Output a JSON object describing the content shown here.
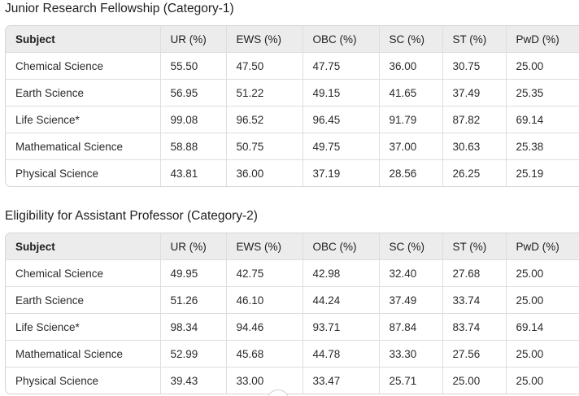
{
  "sections": [
    {
      "title": "Junior Research Fellowship (Category-1)",
      "headers": [
        "Subject",
        "UR (%)",
        "EWS (%)",
        "OBC (%)",
        "SC (%)",
        "ST (%)",
        "PwD (%)"
      ],
      "rows": [
        [
          "Chemical Science",
          "55.50",
          "47.50",
          "47.75",
          "36.00",
          "30.75",
          "25.00"
        ],
        [
          "Earth Science",
          "56.95",
          "51.22",
          "49.15",
          "41.65",
          "37.49",
          "25.35"
        ],
        [
          "Life Science*",
          "99.08",
          "96.52",
          "96.45",
          "91.79",
          "87.82",
          "69.14"
        ],
        [
          "Mathematical Science",
          "58.88",
          "50.75",
          "49.75",
          "37.00",
          "30.63",
          "25.38"
        ],
        [
          "Physical Science",
          "43.81",
          "36.00",
          "37.19",
          "28.56",
          "26.25",
          "25.19"
        ]
      ]
    },
    {
      "title": "Eligibility for Assistant Professor (Category-2)",
      "headers": [
        "Subject",
        "UR (%)",
        "EWS (%)",
        "OBC (%)",
        "SC (%)",
        "ST (%)",
        "PwD (%)"
      ],
      "rows": [
        [
          "Chemical Science",
          "49.95",
          "42.75",
          "42.98",
          "32.40",
          "27.68",
          "25.00"
        ],
        [
          "Earth Science",
          "51.26",
          "46.10",
          "44.24",
          "37.49",
          "33.74",
          "25.00"
        ],
        [
          "Life Science*",
          "98.34",
          "94.46",
          "93.71",
          "87.84",
          "83.74",
          "69.14"
        ],
        [
          "Mathematical Science",
          "52.99",
          "45.68",
          "44.78",
          "33.30",
          "27.56",
          "25.00"
        ],
        [
          "Physical Science",
          "39.43",
          "33.00",
          "33.47",
          "25.71",
          "25.00",
          "25.00"
        ]
      ]
    }
  ]
}
